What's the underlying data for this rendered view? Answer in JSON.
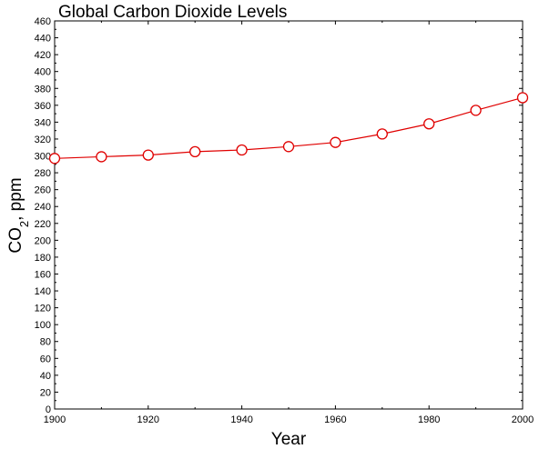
{
  "chart_data": {
    "type": "line",
    "title": "Global Carbon Dioxide Levels",
    "xlabel": "Year",
    "ylabel": {
      "main": "CO",
      "subscript": "2",
      "suffix": ", ppm"
    },
    "xlim": [
      1900,
      2000
    ],
    "ylim": [
      0,
      460
    ],
    "x_ticks": [
      1900,
      1920,
      1940,
      1960,
      1980,
      2000
    ],
    "y_ticks": [
      0,
      20,
      40,
      60,
      80,
      100,
      120,
      140,
      160,
      180,
      200,
      220,
      240,
      260,
      280,
      300,
      320,
      340,
      360,
      380,
      400,
      420,
      440,
      460
    ],
    "grid": false,
    "series": [
      {
        "color": "#e00000",
        "marker": "open-circle",
        "x": [
          1900,
          1910,
          1920,
          1930,
          1940,
          1950,
          1960,
          1970,
          1980,
          1990,
          2000
        ],
        "y": [
          297,
          299,
          301,
          305,
          307,
          311,
          316,
          326,
          338,
          354,
          369
        ]
      }
    ]
  }
}
